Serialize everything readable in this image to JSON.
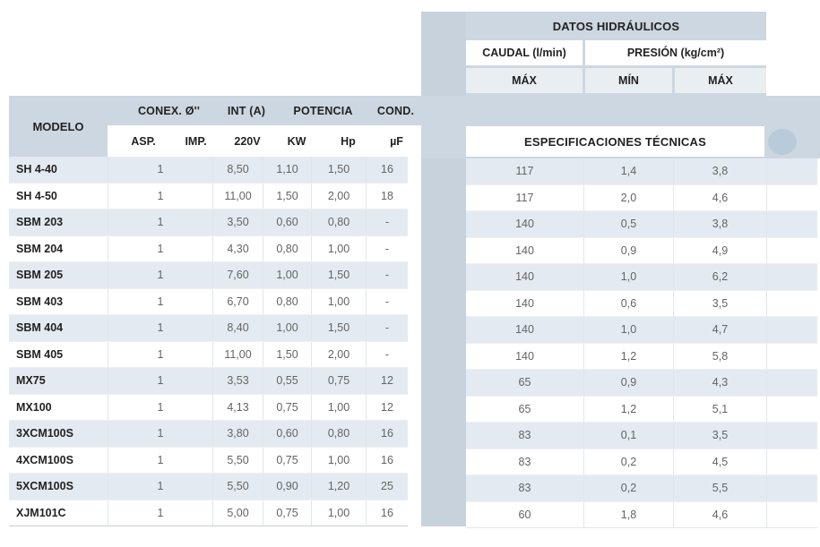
{
  "hydraulic_panel": {
    "title": "DATOS HIDRÁULICOS",
    "caudal_header": "CAUDAL (l/min)",
    "presion_header": "PRESIÓN (kg/cm²)",
    "sub_max_caudal": "MÁX",
    "sub_min_presion": "MÍN",
    "sub_max_presion": "MÁX",
    "spec_banner": "ESPECIFICACIONES TÉCNICAS"
  },
  "spec_table_headers": {
    "modelo": "MODELO",
    "conex": "CONEX. Ø''",
    "int_a": "INT (A)",
    "potencia": "POTENCIA",
    "cond": "COND.",
    "asp": "ASP.",
    "imp": "IMP.",
    "v220": "220V",
    "kw": "KW",
    "hp": "Hp",
    "uf": "µF"
  },
  "rows": [
    {
      "modelo": "SH 4-40",
      "conex": "1",
      "v220": "8,50",
      "kw": "1,10",
      "hp": "1,50",
      "uf": "16",
      "caudal_max": "117",
      "presion_min": "1,4",
      "presion_max": "3,8"
    },
    {
      "modelo": "SH 4-50",
      "conex": "1",
      "v220": "11,00",
      "kw": "1,50",
      "hp": "2,00",
      "uf": "18",
      "caudal_max": "117",
      "presion_min": "2,0",
      "presion_max": "4,6"
    },
    {
      "modelo": "SBM 203",
      "conex": "1",
      "v220": "3,50",
      "kw": "0,60",
      "hp": "0,80",
      "uf": "-",
      "caudal_max": "140",
      "presion_min": "0,5",
      "presion_max": "3,8"
    },
    {
      "modelo": "SBM 204",
      "conex": "1",
      "v220": "4,30",
      "kw": "0,80",
      "hp": "1,00",
      "uf": "-",
      "caudal_max": "140",
      "presion_min": "0,9",
      "presion_max": "4,9"
    },
    {
      "modelo": "SBM 205",
      "conex": "1",
      "v220": "7,60",
      "kw": "1,00",
      "hp": "1,50",
      "uf": "-",
      "caudal_max": "140",
      "presion_min": "1,0",
      "presion_max": "6,2"
    },
    {
      "modelo": "SBM 403",
      "conex": "1",
      "v220": "6,70",
      "kw": "0,80",
      "hp": "1,00",
      "uf": "-",
      "caudal_max": "140",
      "presion_min": "0,6",
      "presion_max": "3,5"
    },
    {
      "modelo": "SBM 404",
      "conex": "1",
      "v220": "8,40",
      "kw": "1,00",
      "hp": "1,50",
      "uf": "-",
      "caudal_max": "140",
      "presion_min": "1,0",
      "presion_max": "4,7"
    },
    {
      "modelo": "SBM 405",
      "conex": "1",
      "v220": "11,00",
      "kw": "1,50",
      "hp": "2,00",
      "uf": "-",
      "caudal_max": "140",
      "presion_min": "1,2",
      "presion_max": "5,8"
    },
    {
      "modelo": "MX75",
      "conex": "1",
      "v220": "3,53",
      "kw": "0,55",
      "hp": "0,75",
      "uf": "12",
      "caudal_max": "65",
      "presion_min": "0,9",
      "presion_max": "4,3"
    },
    {
      "modelo": "MX100",
      "conex": "1",
      "v220": "4,13",
      "kw": "0,75",
      "hp": "1,00",
      "uf": "12",
      "caudal_max": "65",
      "presion_min": "1,2",
      "presion_max": "5,1"
    },
    {
      "modelo": "3XCM100S",
      "conex": "1",
      "v220": "3,80",
      "kw": "0,60",
      "hp": "0,80",
      "uf": "16",
      "caudal_max": "83",
      "presion_min": "0,1",
      "presion_max": "3,5"
    },
    {
      "modelo": "4XCM100S",
      "conex": "1",
      "v220": "5,50",
      "kw": "0,75",
      "hp": "1,00",
      "uf": "16",
      "caudal_max": "83",
      "presion_min": "0,2",
      "presion_max": "4,5"
    },
    {
      "modelo": "5XCM100S",
      "conex": "1",
      "v220": "5,50",
      "kw": "0,90",
      "hp": "1,20",
      "uf": "25",
      "caudal_max": "83",
      "presion_min": "0,2",
      "presion_max": "5,5"
    },
    {
      "modelo": "XJM101C",
      "conex": "1",
      "v220": "5,00",
      "kw": "0,75",
      "hp": "1,00",
      "uf": "16",
      "caudal_max": "60",
      "presion_min": "1,8",
      "presion_max": "4,6"
    }
  ],
  "colors": {
    "panel_blue": "#cdd7e1",
    "strip_blue": "#c7d2dd",
    "zebra_blue": "#e4eaf1",
    "subheader_bg": "#e9eef3",
    "circle_blue": "#b9cbda",
    "text_dark": "#222222",
    "text_value": "#646464"
  }
}
